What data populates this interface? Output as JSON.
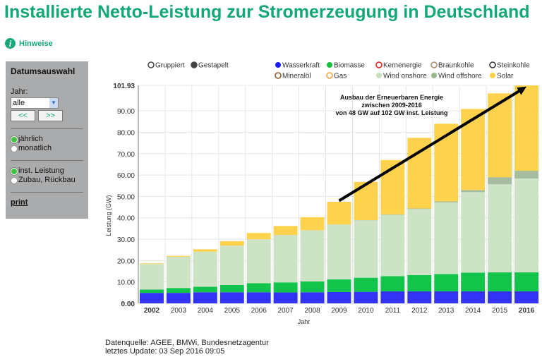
{
  "page": {
    "title": "Installierte Netto-Leistung zur Stromerzeugung in Deutschland",
    "hinweise": "Hinweise",
    "info_icon": "info-icon"
  },
  "sidebar": {
    "heading": "Datumsauswahl",
    "jahr_label": "Jahr:",
    "jahr_value": "alle",
    "prev": "<<",
    "next": ">>",
    "period": [
      {
        "label": "jährlich",
        "checked": true
      },
      {
        "label": "monatlich",
        "checked": false
      }
    ],
    "mode": [
      {
        "label": "inst. Leistung",
        "checked": true
      },
      {
        "label": "Zubau, Rückbau",
        "checked": false
      }
    ],
    "print": "print"
  },
  "footer": {
    "source": "Datenquelle: AGEE, BMWi, Bundesnetzagentur",
    "update": "letztes Update: 03 Sep 2016 09:05"
  },
  "chart_data": {
    "type": "bar",
    "stacked": true,
    "display_modes": [
      {
        "label": "Gruppiert",
        "selected": false
      },
      {
        "label": "Gestapelt",
        "selected": true
      }
    ],
    "xlabel": "Jahr",
    "ylabel": "Leistung (GW)",
    "ylim": [
      0,
      101.93
    ],
    "yticks": [
      "0.00",
      "10.00",
      "20.00",
      "30.00",
      "40.00",
      "50.00",
      "60.00",
      "70.00",
      "80.00",
      "90.00",
      "101.93"
    ],
    "grid": true,
    "categories": [
      "2002",
      "2003",
      "2004",
      "2005",
      "2006",
      "2007",
      "2008",
      "2009",
      "2010",
      "2011",
      "2012",
      "2013",
      "2014",
      "2015",
      "2016"
    ],
    "legend": [
      {
        "name": "Wasserkraft",
        "color": "#1a1aff",
        "active": true
      },
      {
        "name": "Biomasse",
        "color": "#13c13e",
        "active": true
      },
      {
        "name": "Kernenergie",
        "color": "#e02020",
        "active": false
      },
      {
        "name": "Braunkohle",
        "color": "#b09070",
        "active": false
      },
      {
        "name": "Steinkohle",
        "color": "#333333",
        "active": false
      },
      {
        "name": "Mineralöl",
        "color": "#8a5a2a",
        "active": false
      },
      {
        "name": "Gas",
        "color": "#f0a040",
        "active": false
      },
      {
        "name": "Wind onshore",
        "color": "#c8e0c0",
        "active": true
      },
      {
        "name": "Wind offshore",
        "color": "#99b890",
        "active": true
      },
      {
        "name": "Solar",
        "color": "#ffd040",
        "active": true
      }
    ],
    "series": [
      {
        "name": "Wasserkraft",
        "color": "#3333f5",
        "values": [
          4.9,
          4.9,
          5.2,
          5.2,
          5.2,
          5.1,
          5.2,
          5.3,
          5.4,
          5.6,
          5.6,
          5.6,
          5.6,
          5.6,
          5.6
        ]
      },
      {
        "name": "Biomasse",
        "color": "#13c44a",
        "values": [
          1.6,
          2.3,
          2.6,
          3.4,
          4.2,
          4.7,
          5.1,
          5.9,
          6.6,
          7.1,
          7.6,
          8.1,
          8.8,
          8.9,
          8.9
        ]
      },
      {
        "name": "Wind onshore",
        "color": "#cde3c6",
        "values": [
          11.9,
          14.6,
          16.4,
          18.4,
          20.6,
          22.2,
          23.9,
          25.6,
          26.8,
          28.7,
          30.9,
          33.5,
          37.6,
          41.2,
          43.9
        ]
      },
      {
        "name": "Wind offshore",
        "color": "#a5bc9e",
        "values": [
          0,
          0,
          0,
          0,
          0,
          0,
          0,
          0.1,
          0.1,
          0.2,
          0.3,
          0.5,
          1.0,
          3.3,
          3.6
        ]
      },
      {
        "name": "Solar",
        "color": "#ffd24d",
        "values": [
          0.3,
          0.4,
          1.1,
          2.1,
          2.9,
          4.2,
          6.1,
          10.6,
          17.9,
          25.4,
          33.0,
          36.3,
          37.9,
          39.2,
          39.9
        ]
      }
    ],
    "bold_categories": [
      "2002",
      "2016"
    ],
    "annotation": {
      "lines": [
        "Ausbau der Erneuerbaren Energie",
        "zwischen 2009-2016",
        "von 48 GW auf 102 GW inst. Leistung"
      ],
      "arrow_from": {
        "x": "2009",
        "y": 48
      },
      "arrow_to": {
        "x": "2016",
        "y": 102
      }
    }
  }
}
